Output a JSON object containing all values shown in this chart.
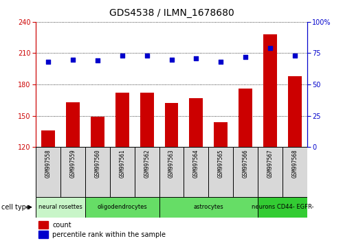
{
  "title": "GDS4538 / ILMN_1678680",
  "samples": [
    "GSM997558",
    "GSM997559",
    "GSM997560",
    "GSM997561",
    "GSM997562",
    "GSM997563",
    "GSM997564",
    "GSM997565",
    "GSM997566",
    "GSM997567",
    "GSM997568"
  ],
  "counts": [
    136,
    163,
    149,
    172,
    172,
    162,
    167,
    144,
    176,
    228,
    188
  ],
  "percentiles": [
    68,
    70,
    69,
    73,
    73,
    70,
    71,
    68,
    72,
    79,
    73
  ],
  "ylim_left": [
    120,
    240
  ],
  "ylim_right": [
    0,
    100
  ],
  "yticks_left": [
    120,
    150,
    180,
    210,
    240
  ],
  "yticks_right": [
    0,
    25,
    50,
    75,
    100
  ],
  "cell_types": [
    {
      "label": "neural rosettes",
      "start": 0,
      "end": 2,
      "color": "#c8f5c8"
    },
    {
      "label": "oligodendrocytes",
      "start": 2,
      "end": 5,
      "color": "#66dd66"
    },
    {
      "label": "astrocytes",
      "start": 5,
      "end": 9,
      "color": "#66dd66"
    },
    {
      "label": "neurons CD44- EGFR-",
      "start": 9,
      "end": 11,
      "color": "#33cc33"
    }
  ],
  "bar_color": "#cc0000",
  "dot_color": "#0000cc",
  "bar_width": 0.55,
  "bg_color": "#ffffff",
  "sample_box_color": "#d8d8d8",
  "legend_count_color": "#cc0000",
  "legend_pct_color": "#0000cc",
  "title_fontsize": 10,
  "tick_fontsize": 7,
  "sample_fontsize": 5.5,
  "ct_fontsize": 6,
  "legend_fontsize": 7
}
